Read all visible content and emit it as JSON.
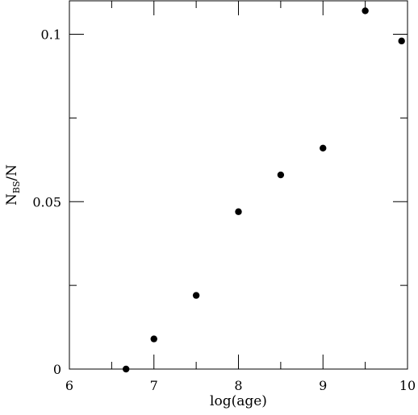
{
  "chart_data": {
    "type": "scatter",
    "xlabel": "log(age)",
    "ylabel_main": "N",
    "ylabel_sub": "BS",
    "ylabel_tail": "/N",
    "xlim": [
      6,
      10
    ],
    "ylim": [
      0,
      0.11
    ],
    "x_ticks": [
      6,
      7,
      8,
      9,
      10
    ],
    "x_tick_labels": [
      "6",
      "7",
      "8",
      "9",
      "10"
    ],
    "y_ticks": [
      0,
      0.05,
      0.1
    ],
    "y_tick_labels": [
      "0",
      "0.05",
      "0.1"
    ],
    "grid": false,
    "series": [
      {
        "x": [
          6.67,
          7.0,
          7.5,
          8.0,
          8.5,
          9.0,
          9.5,
          9.93
        ],
        "y": [
          0.0,
          0.009,
          0.022,
          0.047,
          0.058,
          0.066,
          0.107,
          0.098
        ]
      }
    ]
  }
}
